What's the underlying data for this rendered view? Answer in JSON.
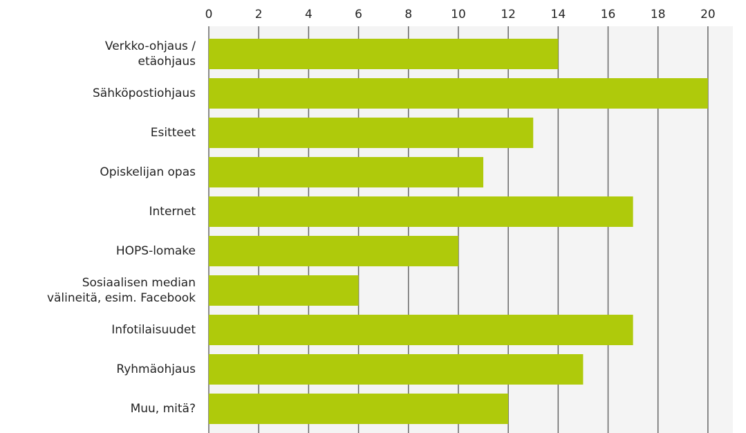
{
  "chart_data": {
    "type": "bar",
    "orientation": "horizontal",
    "categories": [
      "Verkko-ohjaus /\netäohjaus",
      "Sähköpostiohjaus",
      "Esitteet",
      "Opiskelijan opas",
      "Internet",
      "HOPS-lomake",
      "Sosiaalisen median\nvälineitä, esim. Facebook",
      "Infotilaisuudet",
      "Ryhmäohjaus",
      "Muu, mitä?"
    ],
    "values": [
      14,
      20,
      13,
      11,
      17,
      10,
      6,
      17,
      15,
      12
    ],
    "color": "#afca0b",
    "xlim": [
      0,
      21
    ],
    "xticks": [
      0,
      2,
      4,
      6,
      8,
      10,
      12,
      14,
      16,
      18,
      20
    ],
    "grid": true
  }
}
